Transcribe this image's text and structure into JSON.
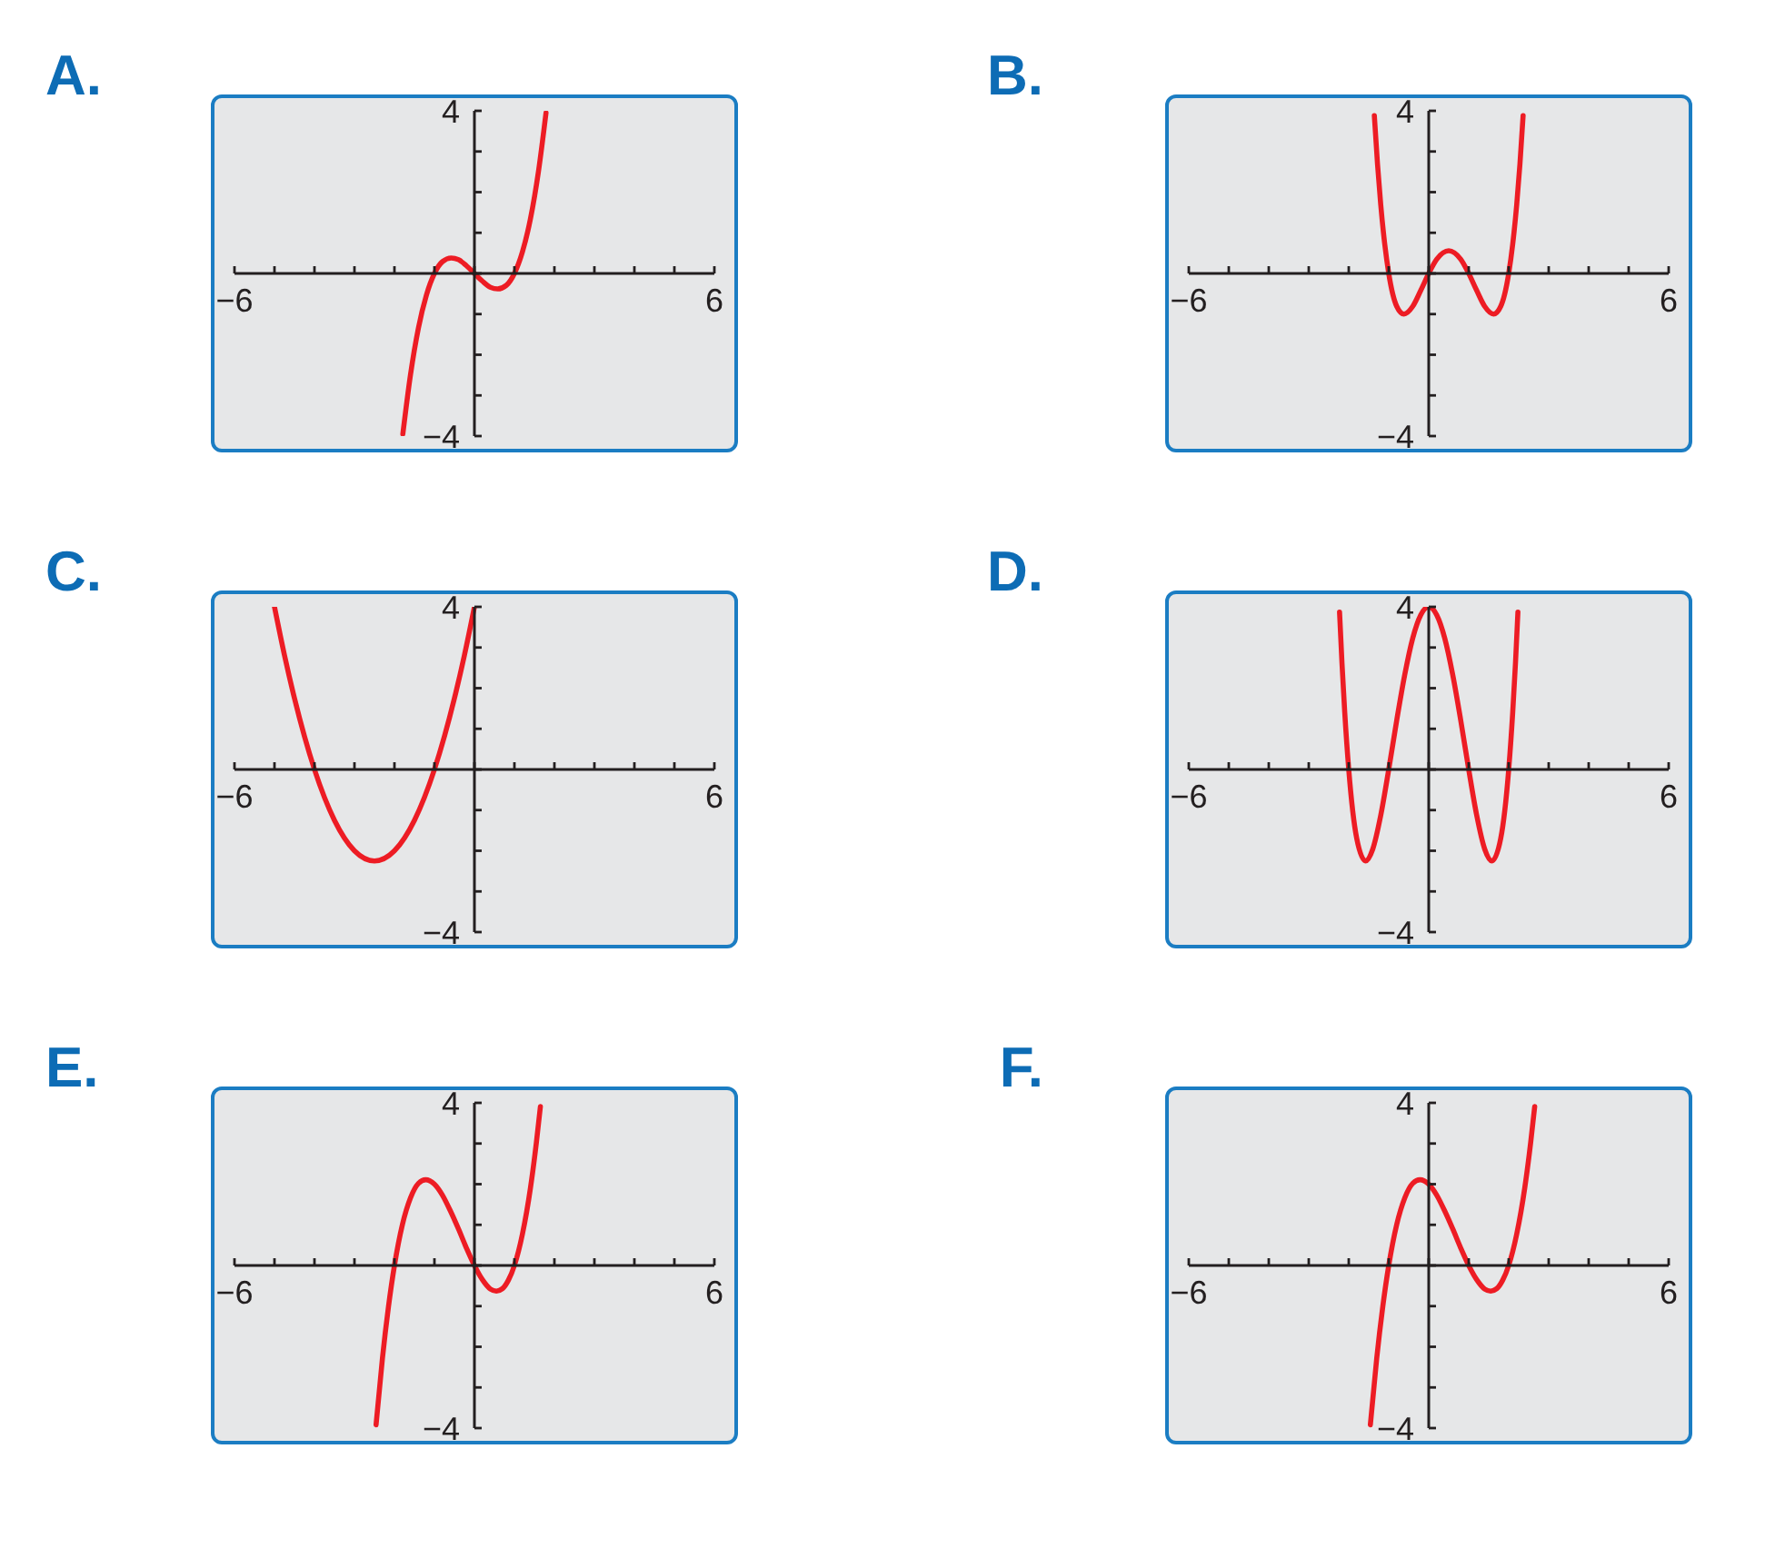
{
  "chart_data": [
    {
      "type": "line",
      "title": "A.",
      "color": "#ed1c24",
      "x": [
        -1.79,
        -1.6,
        -1.4,
        -1.2,
        -1.0,
        -0.8,
        -0.58,
        -0.4,
        -0.2,
        0,
        0.2,
        0.4,
        0.58,
        0.8,
        1.0,
        1.2,
        1.4,
        1.6,
        1.79
      ],
      "values": [
        -3.95,
        -2.5,
        -1.34,
        -0.53,
        0,
        0.29,
        0.38,
        0.34,
        0.19,
        0,
        -0.19,
        -0.34,
        -0.38,
        -0.29,
        0,
        0.53,
        1.34,
        2.5,
        3.95
      ],
      "xlim": [
        -6,
        6
      ],
      "ylim": [
        -4,
        4
      ],
      "xticks": [
        {
          "value": -6,
          "label": "−6"
        },
        {
          "value": -5,
          "label": null
        },
        {
          "value": -4,
          "label": null
        },
        {
          "value": -3,
          "label": null
        },
        {
          "value": -2,
          "label": null
        },
        {
          "value": -1,
          "label": null
        },
        {
          "value": 0,
          "label": null
        },
        {
          "value": 1,
          "label": null
        },
        {
          "value": 2,
          "label": null
        },
        {
          "value": 3,
          "label": null
        },
        {
          "value": 4,
          "label": null
        },
        {
          "value": 5,
          "label": null
        },
        {
          "value": 6,
          "label": "6"
        }
      ],
      "yticks": [
        {
          "value": -4,
          "label": "−4"
        },
        {
          "value": -3,
          "label": null
        },
        {
          "value": -2,
          "label": null
        },
        {
          "value": -1,
          "label": null
        },
        {
          "value": 0,
          "label": null
        },
        {
          "value": 1,
          "label": null
        },
        {
          "value": 2,
          "label": null
        },
        {
          "value": 3,
          "label": null
        },
        {
          "value": 4,
          "label": "4"
        }
      ]
    },
    {
      "type": "line",
      "title": "B.",
      "color": "#ed1c24",
      "x": [
        -1.36,
        -1.28,
        -1.2,
        -1.1,
        -1.0,
        -0.8,
        -0.62,
        -0.4,
        -0.2,
        0,
        0.2,
        0.5,
        0.8,
        1.0,
        1.2,
        1.4,
        1.62,
        1.8,
        2.0,
        2.1,
        2.2,
        2.28,
        2.36
      ],
      "values": [
        3.88,
        2.68,
        1.69,
        0.72,
        0,
        -0.81,
        -1.0,
        -0.81,
        -0.42,
        0,
        0.35,
        0.56,
        0.35,
        0,
        -0.42,
        -0.81,
        -1.0,
        -0.81,
        0,
        0.72,
        1.69,
        2.68,
        3.88
      ],
      "xlim": [
        -6,
        6
      ],
      "ylim": [
        -4,
        4
      ],
      "xticks": [
        {
          "value": -6,
          "label": "−6"
        },
        {
          "value": -5,
          "label": null
        },
        {
          "value": -4,
          "label": null
        },
        {
          "value": -3,
          "label": null
        },
        {
          "value": -2,
          "label": null
        },
        {
          "value": -1,
          "label": null
        },
        {
          "value": 0,
          "label": null
        },
        {
          "value": 1,
          "label": null
        },
        {
          "value": 2,
          "label": null
        },
        {
          "value": 3,
          "label": null
        },
        {
          "value": 4,
          "label": null
        },
        {
          "value": 5,
          "label": null
        },
        {
          "value": 6,
          "label": "6"
        }
      ],
      "yticks": [
        {
          "value": -4,
          "label": "−4"
        },
        {
          "value": -3,
          "label": null
        },
        {
          "value": -2,
          "label": null
        },
        {
          "value": -1,
          "label": null
        },
        {
          "value": 0,
          "label": null
        },
        {
          "value": 1,
          "label": null
        },
        {
          "value": 2,
          "label": null
        },
        {
          "value": 3,
          "label": null
        },
        {
          "value": 4,
          "label": "4"
        }
      ]
    },
    {
      "type": "line",
      "title": "C.",
      "color": "#ed1c24",
      "x": [
        -5,
        -4.75,
        -4.5,
        -4,
        -3.5,
        -3,
        -2.5,
        -2,
        -1.5,
        -1,
        -0.5,
        -0.25,
        0
      ],
      "values": [
        4,
        2.81,
        1.75,
        0,
        -1.25,
        -2,
        -2.25,
        -2,
        -1.25,
        0,
        1.75,
        2.81,
        4
      ],
      "xlim": [
        -6,
        6
      ],
      "ylim": [
        -4,
        4
      ],
      "xticks": [
        {
          "value": -6,
          "label": "−6"
        },
        {
          "value": -5,
          "label": null
        },
        {
          "value": -4,
          "label": null
        },
        {
          "value": -3,
          "label": null
        },
        {
          "value": -2,
          "label": null
        },
        {
          "value": -1,
          "label": null
        },
        {
          "value": 0,
          "label": null
        },
        {
          "value": 1,
          "label": null
        },
        {
          "value": 2,
          "label": null
        },
        {
          "value": 3,
          "label": null
        },
        {
          "value": 4,
          "label": null
        },
        {
          "value": 5,
          "label": null
        },
        {
          "value": 6,
          "label": "6"
        }
      ],
      "yticks": [
        {
          "value": -4,
          "label": "−4"
        },
        {
          "value": -3,
          "label": null
        },
        {
          "value": -2,
          "label": null
        },
        {
          "value": -1,
          "label": null
        },
        {
          "value": 0,
          "label": null
        },
        {
          "value": 1,
          "label": null
        },
        {
          "value": 2,
          "label": null
        },
        {
          "value": 3,
          "label": null
        },
        {
          "value": 4,
          "label": "4"
        }
      ]
    },
    {
      "type": "line",
      "title": "D.",
      "color": "#ed1c24",
      "x": [
        -2.23,
        -2.17,
        -2.1,
        -2.0,
        -1.8,
        -1.58,
        -1.4,
        -1.2,
        -1.0,
        -0.8,
        -0.6,
        -0.4,
        -0.2,
        0,
        0.2,
        0.4,
        0.6,
        0.8,
        1.0,
        1.2,
        1.4,
        1.58,
        1.8,
        2.0,
        2.1,
        2.17,
        2.23
      ],
      "values": [
        3.87,
        2.63,
        1.4,
        0,
        -1.7,
        -2.25,
        -1.96,
        -1.13,
        0,
        1.21,
        2.33,
        3.23,
        3.8,
        4,
        3.8,
        3.23,
        2.33,
        1.21,
        0,
        -1.13,
        -1.96,
        -2.25,
        -1.7,
        0,
        1.4,
        2.63,
        3.87
      ],
      "xlim": [
        -6,
        6
      ],
      "ylim": [
        -4,
        4
      ],
      "xticks": [
        {
          "value": -6,
          "label": "−6"
        },
        {
          "value": -5,
          "label": null
        },
        {
          "value": -4,
          "label": null
        },
        {
          "value": -3,
          "label": null
        },
        {
          "value": -2,
          "label": null
        },
        {
          "value": -1,
          "label": null
        },
        {
          "value": 0,
          "label": null
        },
        {
          "value": 1,
          "label": null
        },
        {
          "value": 2,
          "label": null
        },
        {
          "value": 3,
          "label": null
        },
        {
          "value": 4,
          "label": null
        },
        {
          "value": 5,
          "label": null
        },
        {
          "value": 6,
          "label": "6"
        }
      ],
      "yticks": [
        {
          "value": -4,
          "label": "−4"
        },
        {
          "value": -3,
          "label": null
        },
        {
          "value": -2,
          "label": null
        },
        {
          "value": -1,
          "label": null
        },
        {
          "value": 0,
          "label": null
        },
        {
          "value": 1,
          "label": null
        },
        {
          "value": 2,
          "label": null
        },
        {
          "value": 3,
          "label": null
        },
        {
          "value": 4,
          "label": "4"
        }
      ]
    },
    {
      "type": "line",
      "title": "E.",
      "color": "#ed1c24",
      "x": [
        -2.46,
        -2.3,
        -2.15,
        -2.0,
        -1.8,
        -1.6,
        -1.4,
        -1.22,
        -1.0,
        -0.8,
        -0.6,
        -0.4,
        -0.2,
        0,
        0.2,
        0.4,
        0.55,
        0.7,
        0.85,
        1.0,
        1.2,
        1.4,
        1.55,
        1.65
      ],
      "values": [
        -3.92,
        -2.28,
        -1.02,
        0,
        1.01,
        1.66,
        2.02,
        2.11,
        2.0,
        1.73,
        1.34,
        0.9,
        0.43,
        0,
        -0.35,
        -0.58,
        -0.63,
        -0.57,
        -0.36,
        0,
        0.77,
        1.9,
        3.03,
        3.91
      ],
      "xlim": [
        -6,
        6
      ],
      "ylim": [
        -4,
        4
      ],
      "xticks": [
        {
          "value": -6,
          "label": "−6"
        },
        {
          "value": -5,
          "label": null
        },
        {
          "value": -4,
          "label": null
        },
        {
          "value": -3,
          "label": null
        },
        {
          "value": -2,
          "label": null
        },
        {
          "value": -1,
          "label": null
        },
        {
          "value": 0,
          "label": null
        },
        {
          "value": 1,
          "label": null
        },
        {
          "value": 2,
          "label": null
        },
        {
          "value": 3,
          "label": null
        },
        {
          "value": 4,
          "label": null
        },
        {
          "value": 5,
          "label": null
        },
        {
          "value": 6,
          "label": "6"
        }
      ],
      "yticks": [
        {
          "value": -4,
          "label": "−4"
        },
        {
          "value": -3,
          "label": null
        },
        {
          "value": -2,
          "label": null
        },
        {
          "value": -1,
          "label": null
        },
        {
          "value": 0,
          "label": null
        },
        {
          "value": 1,
          "label": null
        },
        {
          "value": 2,
          "label": null
        },
        {
          "value": 3,
          "label": null
        },
        {
          "value": 4,
          "label": "4"
        }
      ]
    },
    {
      "type": "line",
      "title": "F.",
      "color": "#ed1c24",
      "x": [
        -1.46,
        -1.3,
        -1.15,
        -1.0,
        -0.8,
        -0.6,
        -0.4,
        -0.22,
        0,
        0.2,
        0.4,
        0.6,
        0.8,
        1.0,
        1.2,
        1.4,
        1.55,
        1.7,
        1.85,
        2.0,
        2.2,
        2.4,
        2.55,
        2.65
      ],
      "values": [
        -3.92,
        -2.28,
        -1.02,
        0,
        1.01,
        1.66,
        2.02,
        2.11,
        2.0,
        1.73,
        1.34,
        0.9,
        0.43,
        0,
        -0.35,
        -0.58,
        -0.63,
        -0.57,
        -0.36,
        0,
        0.77,
        1.9,
        3.03,
        3.91
      ],
      "xlim": [
        -6,
        6
      ],
      "ylim": [
        -4,
        4
      ],
      "xticks": [
        {
          "value": -6,
          "label": "−6"
        },
        {
          "value": -5,
          "label": null
        },
        {
          "value": -4,
          "label": null
        },
        {
          "value": -3,
          "label": null
        },
        {
          "value": -2,
          "label": null
        },
        {
          "value": -1,
          "label": null
        },
        {
          "value": 0,
          "label": null
        },
        {
          "value": 1,
          "label": null
        },
        {
          "value": 2,
          "label": null
        },
        {
          "value": 3,
          "label": null
        },
        {
          "value": 4,
          "label": null
        },
        {
          "value": 5,
          "label": null
        },
        {
          "value": 6,
          "label": "6"
        }
      ],
      "yticks": [
        {
          "value": -4,
          "label": "−4"
        },
        {
          "value": -3,
          "label": null
        },
        {
          "value": -2,
          "label": null
        },
        {
          "value": -1,
          "label": null
        },
        {
          "value": 0,
          "label": null
        },
        {
          "value": 1,
          "label": null
        },
        {
          "value": 2,
          "label": null
        },
        {
          "value": 3,
          "label": null
        },
        {
          "value": 4,
          "label": "4"
        }
      ]
    }
  ]
}
